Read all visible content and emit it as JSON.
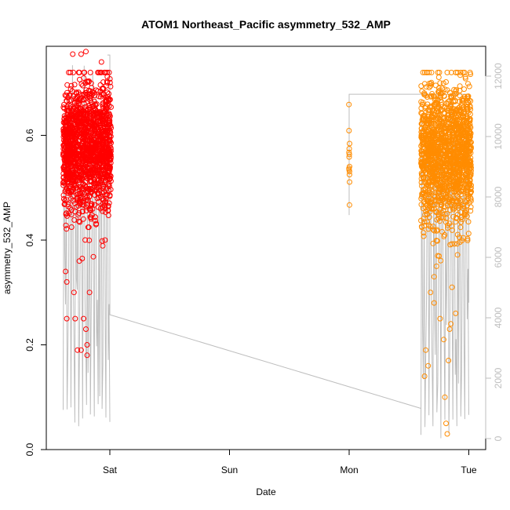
{
  "chart_data": {
    "type": "scatter",
    "title": "ATOM1 Northeast_Pacific asymmetry_532_AMP",
    "xlabel": "Date",
    "ylabel": "asymmetry_532_AMP",
    "x_ticks": [
      "Sat",
      "Sun",
      "Mon",
      "Tue"
    ],
    "x_unit": "days (Sat = 0)",
    "xlim": [
      -0.45,
      3.15
    ],
    "ylim": [
      0,
      0.77
    ],
    "y_ticks": [
      0.0,
      0.2,
      0.4,
      0.6
    ],
    "y_tick_labels": [
      "0.0",
      "0.2",
      "0.4",
      "0.6"
    ],
    "y2": {
      "ylim": [
        0,
        12700
      ],
      "ticks": [
        0,
        2000,
        4000,
        6000,
        8000,
        10000,
        12000
      ],
      "tick_labels": [
        "0",
        "2000",
        "4000",
        "6000",
        "8000",
        "10000",
        "12000"
      ],
      "color": "#bebebe"
    },
    "grid": false,
    "legend": "none",
    "series": [
      {
        "color": "#ff0000",
        "marker": "open-circle",
        "clusters": [
          {
            "x_range": [
              -0.39,
              0.01
            ],
            "y_mean": 0.575,
            "y_sd": 0.062,
            "n": 1500
          }
        ],
        "outliers": [
          {
            "x": -0.37,
            "y": 0.34
          },
          {
            "x": -0.36,
            "y": 0.32
          },
          {
            "x": -0.36,
            "y": 0.25
          },
          {
            "x": -0.3,
            "y": 0.3
          },
          {
            "x": -0.27,
            "y": 0.19
          },
          {
            "x": -0.24,
            "y": 0.19
          },
          {
            "x": -0.2,
            "y": 0.23
          },
          {
            "x": -0.19,
            "y": 0.2
          },
          {
            "x": -0.19,
            "y": 0.18
          },
          {
            "x": -0.22,
            "y": 0.25
          },
          {
            "x": -0.29,
            "y": 0.25
          },
          {
            "x": -0.17,
            "y": 0.3
          },
          {
            "x": -0.24,
            "y": 0.755
          },
          {
            "x": -0.2,
            "y": 0.76
          },
          {
            "x": -0.31,
            "y": 0.755
          },
          {
            "x": -0.07,
            "y": 0.74
          },
          {
            "x": -0.33,
            "y": 0.72
          },
          {
            "x": -0.04,
            "y": 0.4
          }
        ]
      },
      {
        "color": "#ff8c00",
        "marker": "open-circle",
        "clusters": [
          {
            "x_range": [
              1.998,
              2.004
            ],
            "y_mean": 0.545,
            "y_sd": 0.035,
            "n": 14
          },
          {
            "x_range": [
              2.6,
              3.02
            ],
            "y_mean": 0.565,
            "y_sd": 0.065,
            "n": 1500
          }
        ],
        "outliers": [
          {
            "x": 2.81,
            "y": 0.05
          },
          {
            "x": 2.82,
            "y": 0.03
          },
          {
            "x": 2.8,
            "y": 0.1
          },
          {
            "x": 2.83,
            "y": 0.17
          },
          {
            "x": 2.84,
            "y": 0.23
          },
          {
            "x": 2.79,
            "y": 0.21
          },
          {
            "x": 2.66,
            "y": 0.16
          },
          {
            "x": 2.63,
            "y": 0.14
          },
          {
            "x": 2.68,
            "y": 0.3
          },
          {
            "x": 2.71,
            "y": 0.33
          },
          {
            "x": 2.73,
            "y": 0.35
          },
          {
            "x": 2.86,
            "y": 0.31
          },
          {
            "x": 2.76,
            "y": 0.25
          },
          {
            "x": 2.71,
            "y": 0.28
          },
          {
            "x": 2.74,
            "y": 0.37
          },
          {
            "x": 2.89,
            "y": 0.26
          },
          {
            "x": 2.85,
            "y": 0.24
          },
          {
            "x": 2.64,
            "y": 0.19
          },
          {
            "x": 2.75,
            "y": 0.69
          },
          {
            "x": 2.76,
            "y": 0.7
          },
          {
            "x": 2.77,
            "y": 0.68
          }
        ]
      },
      {
        "color": "#bebebe",
        "marker": "line",
        "axis": "right",
        "segments": [
          {
            "x_range": [
              -0.39,
              0.0
            ],
            "y_range": [
              300,
              12700
            ],
            "style": "dense"
          },
          {
            "points": [
              [
                -0.02,
                12700
              ],
              [
                0.0,
                12700
              ],
              [
                0.0,
                4100
              ],
              [
                2.6,
                1000
              ]
            ]
          },
          {
            "x_range": [
              2.6,
              3.0
            ],
            "y_range": [
              0,
              11400
            ],
            "style": "dense"
          },
          {
            "points": [
              [
                2.0,
                7400
              ],
              [
                2.0,
                11400
              ],
              [
                3.0,
                11400
              ],
              [
                3.0,
                4500
              ]
            ]
          }
        ]
      }
    ]
  }
}
